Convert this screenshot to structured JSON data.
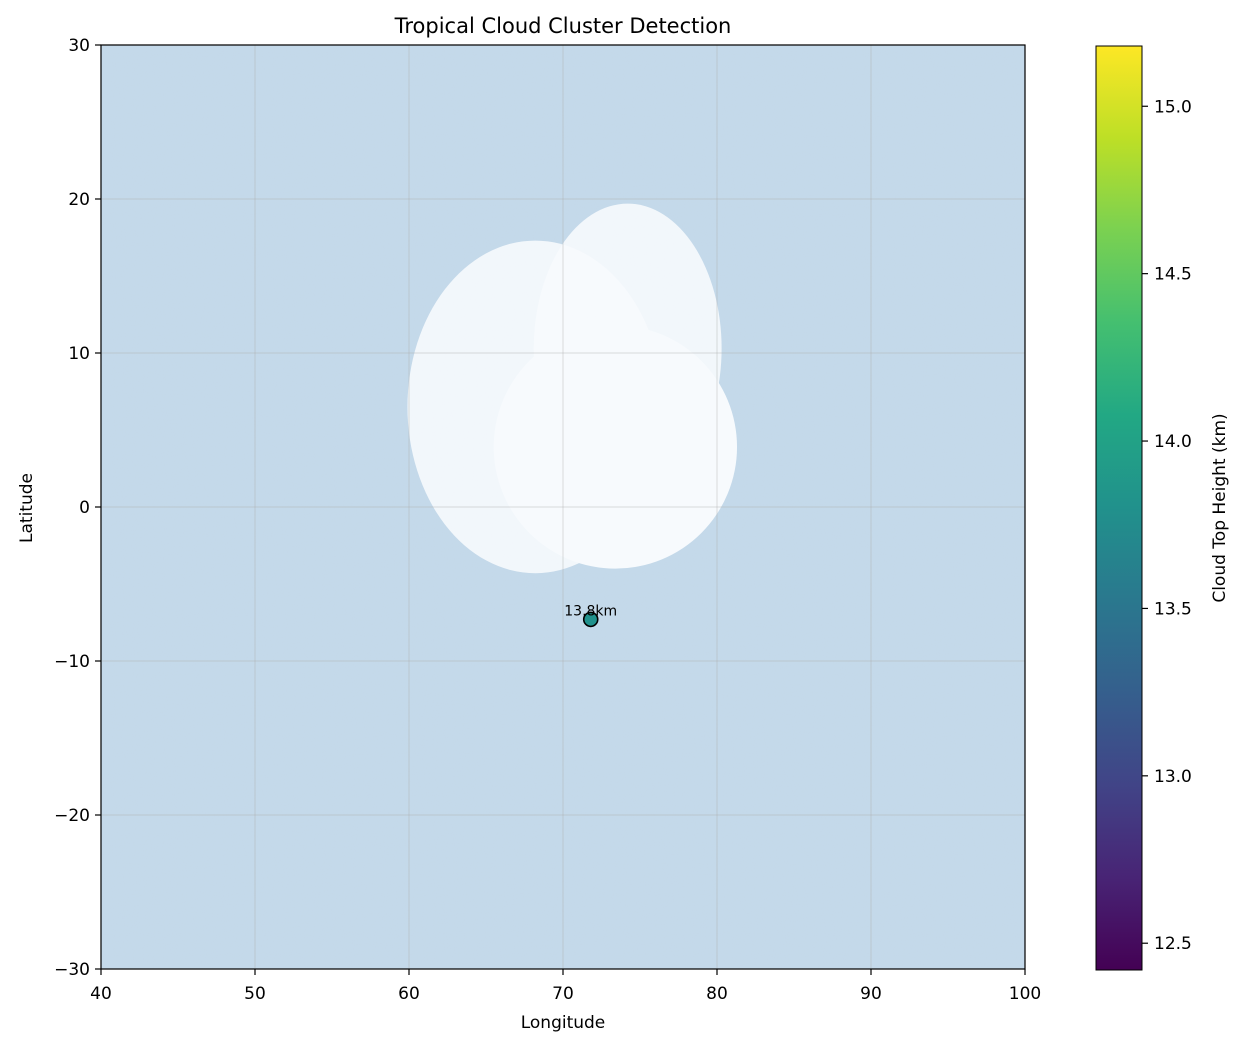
{
  "chart_data": {
    "type": "scatter",
    "title": "Tropical Cloud Cluster Detection",
    "xlabel": "Longitude",
    "ylabel": "Latitude",
    "xlim": [
      40,
      100
    ],
    "ylim": [
      -30,
      30
    ],
    "xticks": [
      40,
      50,
      60,
      70,
      80,
      90,
      100
    ],
    "yticks": [
      -30,
      -20,
      -10,
      0,
      10,
      20,
      30
    ],
    "grid": true,
    "background": {
      "description_color": "#c4d9ea",
      "cloud_color": "#f7fafd"
    },
    "cloud_field": [
      {
        "cx": 68.2,
        "cy": 6.5,
        "rx": 8.3,
        "ry": 10.8,
        "opacity": 0.9
      },
      {
        "cx": 74.2,
        "cy": 10.3,
        "rx": 6.1,
        "ry": 9.4,
        "opacity": 0.9
      },
      {
        "cx": 73.4,
        "cy": 3.9,
        "rx": 7.9,
        "ry": 7.9,
        "opacity": 1.0
      }
    ],
    "points": [
      {
        "x": 71.8,
        "y": -7.3,
        "value": 13.8,
        "label": "13.8km"
      }
    ],
    "colorbar": {
      "label": "Cloud Top Height (km)",
      "colormap": "viridis",
      "range": [
        12.42,
        15.18
      ],
      "ticks": [
        "12.5",
        "13.0",
        "13.5",
        "14.0",
        "14.5",
        "15.0"
      ],
      "tick_values": [
        12.5,
        13.0,
        13.5,
        14.0,
        14.5,
        15.0
      ]
    }
  }
}
